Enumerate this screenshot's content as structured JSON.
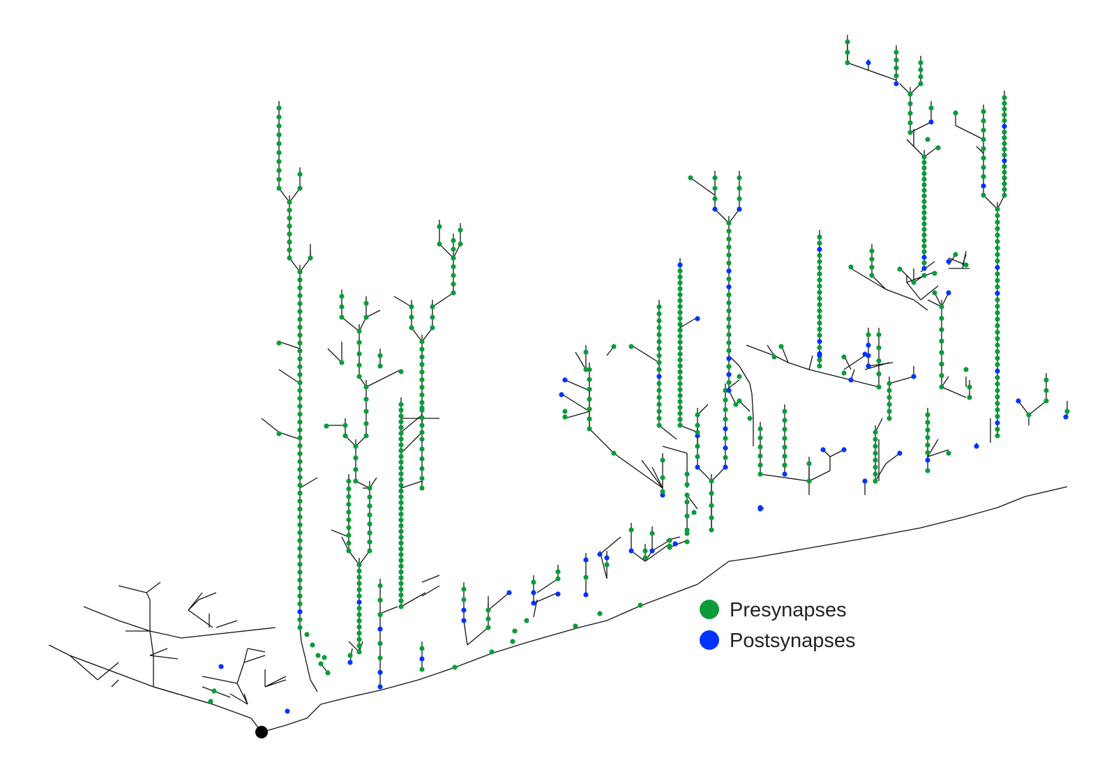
{
  "legend": [
    {
      "label": "Presynapses",
      "color": "#0c9b3b"
    },
    {
      "label": "Postsynapses",
      "color": "#0033ff"
    }
  ],
  "soma_color": "#000000",
  "edge_color": "#111111"
}
